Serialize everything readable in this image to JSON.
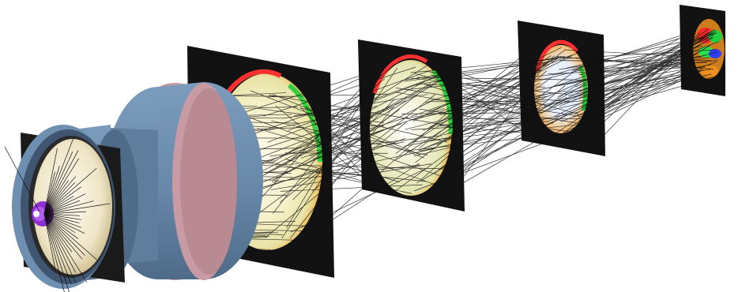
{
  "scene": {
    "colors": {
      "background": "#ffffff",
      "screen": "#111111",
      "lens_body": "#6f8fb0",
      "lens_body_dark": "#4c6886",
      "lens_rim": "#c89aa3",
      "lens_rim_dark": "#9d7078",
      "disc_face": "#f6eed8",
      "hub": "#9a3ce0",
      "ray": "#101010"
    },
    "screens": [
      {
        "name": "screen-1",
        "spot_colors": [
          "#ff4040",
          "#30d040",
          "#f4a020",
          "#fff5d8"
        ]
      },
      {
        "name": "screen-2",
        "spot_colors": [
          "#ff4040",
          "#30d040",
          "#f4a020",
          "#fff5d8"
        ]
      },
      {
        "name": "screen-3",
        "spot_colors": [
          "#ff4040",
          "#30d040",
          "#f4a020",
          "#dfe8ff"
        ]
      },
      {
        "name": "screen-4",
        "spot_colors": [
          "#ff3030",
          "#20d040",
          "#f09020",
          "#3040ff"
        ]
      }
    ]
  }
}
